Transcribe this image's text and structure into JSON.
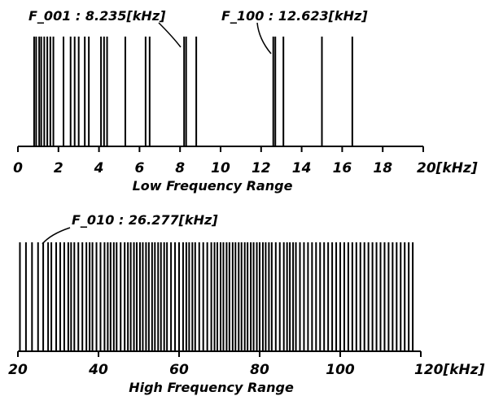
{
  "chart_data": [
    {
      "type": "bar",
      "title": "",
      "xlabel": "Low Frequency Range",
      "ylabel": "",
      "xlim": [
        0,
        20
      ],
      "ticks": [
        0,
        2,
        4,
        6,
        8,
        10,
        12,
        14,
        16,
        18,
        20
      ],
      "tick_labels": [
        "0",
        "2",
        "4",
        "6",
        "8",
        "10",
        "12",
        "14",
        "16",
        "18",
        "20[kHz]"
      ],
      "lines": [
        0.8,
        0.9,
        1.05,
        1.15,
        1.3,
        1.45,
        1.6,
        1.75,
        2.25,
        2.6,
        2.8,
        3.0,
        3.3,
        3.5,
        4.1,
        4.25,
        4.4,
        5.3,
        6.3,
        6.5,
        8.2,
        8.3,
        8.8,
        12.6,
        12.7,
        13.1,
        15.0,
        16.5
      ],
      "annotations": [
        {
          "text": "F_001 : 8.235[kHz]",
          "x": 8.235
        },
        {
          "text": "F_100 : 12.623[kHz]",
          "x": 12.623
        }
      ]
    },
    {
      "type": "bar",
      "title": "",
      "xlabel": "High Frequency Range",
      "ylabel": "",
      "xlim": [
        20,
        120
      ],
      "ticks": [
        20,
        40,
        60,
        80,
        100,
        120
      ],
      "tick_labels": [
        "20",
        "40",
        "60",
        "80",
        "100",
        "120[kHz]"
      ],
      "lines": [
        20.5,
        22.0,
        23.5,
        25.0,
        26.28,
        27.5,
        28.3,
        29.5,
        30.5,
        31.5,
        32.5,
        33.2,
        34.0,
        35.0,
        36.0,
        37.0,
        37.8,
        38.5,
        39.5,
        40.5,
        41.5,
        42.3,
        43.0,
        43.8,
        44.5,
        45.5,
        46.5,
        47.3,
        48.0,
        48.8,
        49.5,
        50.3,
        51.0,
        51.8,
        52.5,
        53.3,
        54.0,
        54.8,
        55.5,
        56.3,
        57.0,
        58.0,
        59.0,
        60.0,
        61.0,
        61.8,
        62.5,
        63.3,
        64.0,
        65.0,
        66.0,
        67.0,
        68.0,
        68.8,
        69.5,
        70.3,
        71.0,
        71.8,
        72.5,
        73.3,
        74.0,
        74.8,
        75.5,
        76.3,
        77.0,
        77.8,
        78.5,
        79.3,
        80.0,
        80.8,
        81.5,
        82.3,
        83.0,
        84.0,
        85.0,
        86.0,
        86.8,
        87.5,
        88.3,
        89.0,
        90.0,
        91.0,
        92.0,
        93.0,
        94.0,
        95.0,
        96.0,
        97.0,
        98.0,
        99.0,
        100.0,
        101.0,
        102.0,
        103.0,
        104.0,
        105.0,
        106.0,
        107.0,
        108.0,
        109.0,
        110.0,
        111.0,
        112.0,
        113.0,
        114.0,
        115.0,
        116.0,
        117.0,
        118.0
      ],
      "annotations": [
        {
          "text": "F_010 : 26.277[kHz]",
          "x": 26.277
        }
      ]
    }
  ]
}
